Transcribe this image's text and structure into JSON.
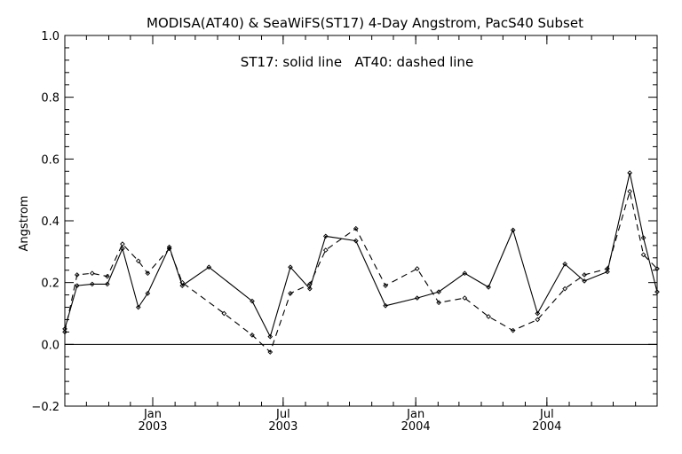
{
  "chart_data": {
    "type": "line",
    "title": "MODISA(AT40) & SeaWiFS(ST17) 4-Day Angstrom, PacS40 Subset",
    "annotation": "ST17: solid line   AT40: dashed line",
    "ylabel": "Angstrom",
    "xlabel": "",
    "ylim": [
      -0.2,
      1.0
    ],
    "xlim": [
      "2002-09-01",
      "2004-12-01"
    ],
    "y_ticks": [
      "−0.2",
      "0.0",
      "0.2",
      "0.4",
      "0.6",
      "0.8",
      "1.0"
    ],
    "y_tick_values": [
      -0.2,
      0.0,
      0.2,
      0.4,
      0.6,
      0.8,
      1.0
    ],
    "x_ticks": [
      {
        "date": "2003-01-01",
        "month": "Jan",
        "year": "2003"
      },
      {
        "date": "2003-07-01",
        "month": "Jul",
        "year": "2003"
      },
      {
        "date": "2004-01-01",
        "month": "Jan",
        "year": "2004"
      },
      {
        "date": "2004-07-01",
        "month": "Jul",
        "year": "2004"
      }
    ],
    "zero_line": true,
    "grid": false,
    "series": [
      {
        "name": "ST17",
        "style": "solid",
        "color": "#000000",
        "points": [
          [
            "2002-09-01",
            0.05
          ],
          [
            "2002-09-18",
            0.19
          ],
          [
            "2002-10-09",
            0.195
          ],
          [
            "2002-10-30",
            0.195
          ],
          [
            "2002-11-20",
            0.31
          ],
          [
            "2002-12-12",
            0.12
          ],
          [
            "2002-12-25",
            0.165
          ],
          [
            "2003-01-24",
            0.315
          ],
          [
            "2003-02-11",
            0.19
          ],
          [
            "2003-03-20",
            0.25
          ],
          [
            "2003-05-19",
            0.14
          ],
          [
            "2003-06-13",
            0.025
          ],
          [
            "2003-07-11",
            0.25
          ],
          [
            "2003-08-07",
            0.18
          ],
          [
            "2003-08-29",
            0.35
          ],
          [
            "2003-10-10",
            0.335
          ],
          [
            "2003-11-20",
            0.125
          ],
          [
            "2004-01-03",
            0.15
          ],
          [
            "2004-02-02",
            0.17
          ],
          [
            "2004-03-09",
            0.23
          ],
          [
            "2004-04-11",
            0.185
          ],
          [
            "2004-05-15",
            0.37
          ],
          [
            "2004-06-18",
            0.1
          ],
          [
            "2004-07-26",
            0.26
          ],
          [
            "2004-08-22",
            0.205
          ],
          [
            "2004-09-23",
            0.235
          ],
          [
            "2004-10-24",
            0.555
          ],
          [
            "2004-11-12",
            0.345
          ],
          [
            "2004-12-01",
            0.17
          ]
        ]
      },
      {
        "name": "AT40",
        "style": "dashed",
        "color": "#000000",
        "points": [
          [
            "2002-09-01",
            0.04
          ],
          [
            "2002-09-18",
            0.225
          ],
          [
            "2002-10-09",
            0.23
          ],
          [
            "2002-10-30",
            0.22
          ],
          [
            "2002-11-20",
            0.325
          ],
          [
            "2002-12-12",
            0.27
          ],
          [
            "2002-12-25",
            0.23
          ],
          [
            "2003-01-24",
            0.31
          ],
          [
            "2003-02-11",
            0.2
          ],
          [
            "2003-04-10",
            0.1
          ],
          [
            "2003-05-19",
            0.03
          ],
          [
            "2003-06-13",
            -0.025
          ],
          [
            "2003-07-11",
            0.165
          ],
          [
            "2003-08-07",
            0.195
          ],
          [
            "2003-08-29",
            0.305
          ],
          [
            "2003-10-10",
            0.375
          ],
          [
            "2003-11-20",
            0.19
          ],
          [
            "2004-01-03",
            0.245
          ],
          [
            "2004-02-02",
            0.135
          ],
          [
            "2004-03-09",
            0.15
          ],
          [
            "2004-04-11",
            0.09
          ],
          [
            "2004-05-15",
            0.045
          ],
          [
            "2004-06-18",
            0.08
          ],
          [
            "2004-07-26",
            0.18
          ],
          [
            "2004-08-22",
            0.225
          ],
          [
            "2004-09-23",
            0.245
          ],
          [
            "2004-10-24",
            0.495
          ],
          [
            "2004-11-12",
            0.29
          ],
          [
            "2004-12-01",
            0.245
          ]
        ]
      }
    ]
  }
}
